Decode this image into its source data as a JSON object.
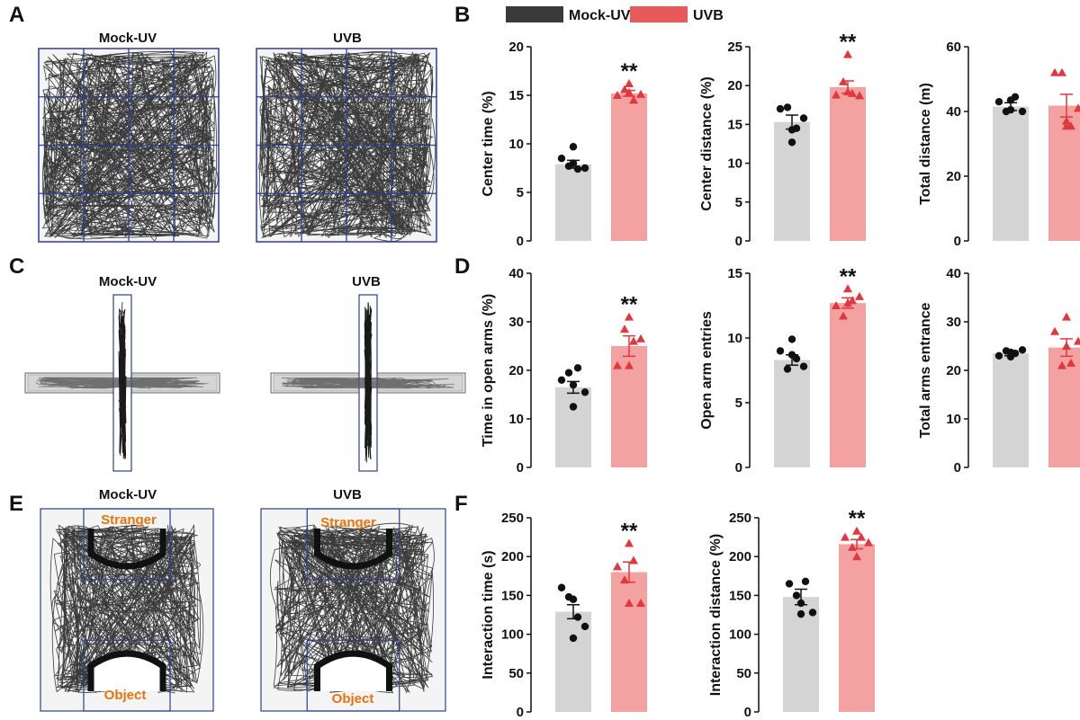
{
  "panels": {
    "A": {
      "letter": "A",
      "labels": [
        "Mock-UV",
        "UVB"
      ]
    },
    "B": {
      "letter": "B"
    },
    "C": {
      "letter": "C",
      "labels": [
        "Mock-UV",
        "UVB"
      ]
    },
    "D": {
      "letter": "D"
    },
    "E": {
      "letter": "E",
      "labels": [
        "Mock-UV",
        "UVB"
      ],
      "zone_top": "Stranger",
      "zone_bottom": "Object"
    },
    "F": {
      "letter": "F"
    }
  },
  "legend": [
    {
      "name": "Mock-UV",
      "color": "#3a3a3a"
    },
    {
      "name": "UVB",
      "color": "#e85a5a"
    }
  ],
  "colors": {
    "mock_bar": "#d4d4d4",
    "uvb_bar": "#f4a1a1",
    "mock_point": "#111111",
    "uvb_point": "#e0383e",
    "grid_box": "#2b3f8f"
  },
  "chart_data": [
    {
      "id": "center-time",
      "type": "bar",
      "ylabel": "Center time (%)",
      "ylim": [
        0,
        20
      ],
      "ticks": [
        "0",
        "5",
        "10",
        "15",
        "20"
      ],
      "categories": [
        "Mock-UV",
        "UVB"
      ],
      "values": [
        7.9,
        15.2
      ],
      "sem": [
        0.4,
        0.3
      ],
      "significance": "**",
      "points": {
        "Mock-UV": [
          8.5,
          7.7,
          7.4,
          7.5,
          8.0,
          9.7
        ],
        "UVB": [
          15.0,
          15.6,
          14.5,
          15.1,
          15.3,
          16.2
        ]
      }
    },
    {
      "id": "center-distance",
      "type": "bar",
      "ylabel": "Center distance (%)",
      "ylim": [
        0,
        25
      ],
      "ticks": [
        "0",
        "5",
        "10",
        "15",
        "20",
        "25"
      ],
      "categories": [
        "Mock-UV",
        "UVB"
      ],
      "values": [
        15.3,
        19.8
      ],
      "sem": [
        0.9,
        0.8
      ],
      "significance": "**",
      "points": {
        "Mock-UV": [
          17.0,
          17.2,
          14.5,
          15.8,
          14.3,
          12.7
        ],
        "UVB": [
          18.8,
          20.5,
          19.0,
          18.7,
          19.2,
          24.0
        ]
      }
    },
    {
      "id": "total-distance",
      "type": "bar",
      "ylabel": "Total distance (m)",
      "ylim": [
        0,
        60
      ],
      "ticks": [
        "0",
        "20",
        "40",
        "60"
      ],
      "categories": [
        "Mock-UV",
        "UVB"
      ],
      "values": [
        41.5,
        41.8
      ],
      "sem": [
        1.2,
        3.5
      ],
      "significance": "",
      "points": {
        "Mock-UV": [
          43.0,
          40.0,
          44.5,
          40.0,
          40.5,
          43.5
        ],
        "UVB": [
          52.0,
          52.0,
          35.5,
          41.0,
          35.5,
          37.0
        ]
      }
    },
    {
      "id": "open-arm-time",
      "type": "bar",
      "ylabel": "Time in  open arms (%)",
      "ylim": [
        0,
        40
      ],
      "ticks": [
        "0",
        "10",
        "20",
        "30",
        "40"
      ],
      "categories": [
        "Mock-UV",
        "UVB"
      ],
      "values": [
        16.5,
        25.0
      ],
      "sem": [
        1.2,
        2.1
      ],
      "significance": "**",
      "points": {
        "Mock-UV": [
          18.0,
          19.5,
          20.5,
          15.5,
          17.0,
          12.5
        ],
        "UVB": [
          21.0,
          28.5,
          26.0,
          26.5,
          21.0,
          31.0
        ]
      }
    },
    {
      "id": "open-arm-entries",
      "type": "bar",
      "ylabel": "Open arm entries",
      "ylim": [
        0,
        15
      ],
      "ticks": [
        "0",
        "5",
        "10",
        "15"
      ],
      "categories": [
        "Mock-UV",
        "UVB"
      ],
      "values": [
        8.3,
        12.7
      ],
      "sem": [
        0.4,
        0.4
      ],
      "significance": "**",
      "points": {
        "Mock-UV": [
          9.0,
          7.6,
          8.4,
          7.8,
          8.7,
          9.9
        ],
        "UVB": [
          12.5,
          11.7,
          12.9,
          13.2,
          12.7,
          13.8
        ]
      }
    },
    {
      "id": "total-arms-entrance",
      "type": "bar",
      "ylabel": "Total arms entrance",
      "ylim": [
        0,
        40
      ],
      "ticks": [
        "0",
        "10",
        "20",
        "30",
        "40"
      ],
      "categories": [
        "Mock-UV",
        "UVB"
      ],
      "values": [
        23.5,
        24.7
      ],
      "sem": [
        0.5,
        1.8
      ],
      "significance": "",
      "points": {
        "Mock-UV": [
          23.0,
          24.0,
          23.5,
          24.2,
          22.8,
          23.7
        ],
        "UVB": [
          28.0,
          21.0,
          21.5,
          26.0,
          25.0,
          31.0
        ]
      }
    },
    {
      "id": "interaction-time",
      "type": "bar",
      "ylabel": "Interaction time  (s)",
      "ylim": [
        0,
        250
      ],
      "ticks": [
        "0",
        "50",
        "100",
        "150",
        "200",
        "250"
      ],
      "categories": [
        "Mock-UV",
        "UVB"
      ],
      "values": [
        129,
        180
      ],
      "sem": [
        9,
        13
      ],
      "significance": "**",
      "points": {
        "Mock-UV": [
          160,
          148,
          122,
          110,
          95,
          145
        ],
        "UVB": [
          187,
          170,
          195,
          140,
          140,
          217
        ]
      }
    },
    {
      "id": "interaction-distance",
      "type": "bar",
      "ylabel": "Interaction distance (%)",
      "ylim": [
        0,
        250
      ],
      "ticks": [
        "0",
        "50",
        "100",
        "150",
        "200",
        "250"
      ],
      "categories": [
        "Mock-UV",
        "UVB"
      ],
      "values": [
        148,
        216
      ],
      "sem": [
        10,
        6
      ],
      "significance": "**",
      "points": {
        "Mock-UV": [
          165,
          150,
          168,
          128,
          126,
          140
        ],
        "UVB": [
          225,
          212,
          225,
          218,
          200,
          233
        ]
      }
    }
  ]
}
